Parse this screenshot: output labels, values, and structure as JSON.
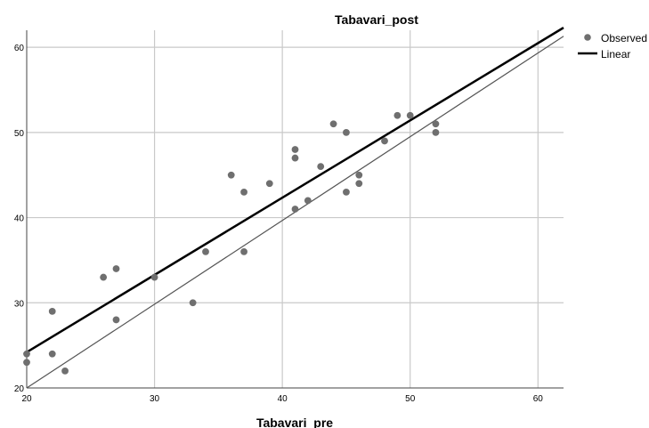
{
  "chart_data": {
    "type": "scatter",
    "title": "Tabavari_post",
    "xlabel": "Tabavari_pre",
    "ylabel": "",
    "xlim": [
      20,
      62
    ],
    "ylim": [
      20,
      62
    ],
    "xticks": [
      20,
      30,
      40,
      50,
      60
    ],
    "yticks": [
      20,
      30,
      40,
      50,
      60
    ],
    "grid": true,
    "legend_position": "top-right",
    "series": [
      {
        "name": "Observed",
        "marker": "circle",
        "color": "#6f6f6f",
        "points": [
          [
            20,
            24
          ],
          [
            20,
            23
          ],
          [
            22,
            29
          ],
          [
            22,
            24
          ],
          [
            23,
            22
          ],
          [
            26,
            33
          ],
          [
            27,
            34
          ],
          [
            27,
            28
          ],
          [
            30,
            33
          ],
          [
            33,
            30
          ],
          [
            34,
            36
          ],
          [
            36,
            45
          ],
          [
            37,
            43
          ],
          [
            37,
            36
          ],
          [
            39,
            44
          ],
          [
            41,
            48
          ],
          [
            41,
            47
          ],
          [
            41,
            41
          ],
          [
            42,
            42
          ],
          [
            43,
            46
          ],
          [
            44,
            51
          ],
          [
            45,
            50
          ],
          [
            45,
            43
          ],
          [
            46,
            45
          ],
          [
            46,
            44
          ],
          [
            48,
            49
          ],
          [
            49,
            52
          ],
          [
            50,
            52
          ],
          [
            52,
            51
          ],
          [
            52,
            50
          ]
        ]
      },
      {
        "name": "Linear",
        "type": "line",
        "color": "#000000",
        "points": [
          [
            20,
            24.2
          ],
          [
            62,
            62.3
          ]
        ]
      }
    ],
    "reference_line": {
      "color": "#555555",
      "points": [
        [
          20,
          20
        ],
        [
          62,
          61.3
        ]
      ]
    }
  }
}
